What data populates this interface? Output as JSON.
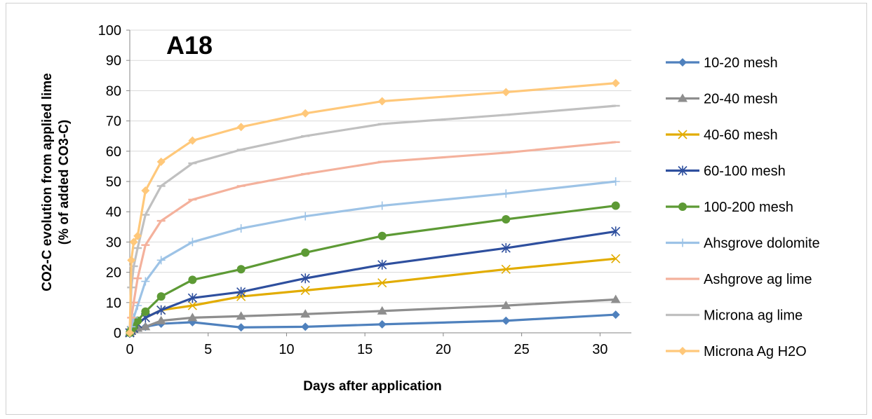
{
  "chart_data": {
    "type": "line",
    "title": "A18",
    "xlabel": "Days after application",
    "ylabel_line1": "CO2-C evolution from applied lime",
    "ylabel_line2": "(% of added CO3-C)",
    "xlim": [
      0,
      32
    ],
    "ylim": [
      0,
      100
    ],
    "xticks": [
      0,
      5,
      10,
      15,
      20,
      25,
      30
    ],
    "yticks": [
      0,
      10,
      20,
      30,
      40,
      50,
      60,
      70,
      80,
      90,
      100
    ],
    "grid": "horizontal",
    "legend_position": "right",
    "x": [
      0,
      0.1,
      0.25,
      0.5,
      1,
      2,
      4,
      7.1,
      11.2,
      16.1,
      24,
      31
    ],
    "series": [
      {
        "name": "10-20 mesh",
        "color": "#4f81bd",
        "marker": "diamond",
        "values": [
          0,
          0.5,
          1.0,
          1.5,
          2.0,
          3.0,
          3.5,
          1.8,
          2.0,
          2.8,
          4.0,
          6.0
        ]
      },
      {
        "name": "20-40 mesh",
        "color": "#8e8e8e",
        "marker": "triangle",
        "values": [
          0,
          0.5,
          1.0,
          1.5,
          2.0,
          4.0,
          5.0,
          5.5,
          6.2,
          7.2,
          9.0,
          11.0
        ]
      },
      {
        "name": "40-60 mesh",
        "color": "#e2ac00",
        "marker": "x",
        "values": [
          0,
          0.8,
          1.5,
          3.0,
          5.0,
          7.5,
          9.0,
          12.0,
          14.0,
          16.5,
          21.0,
          24.5
        ]
      },
      {
        "name": "60-100 mesh",
        "color": "#2e4f9e",
        "marker": "star",
        "values": [
          0,
          0.8,
          1.5,
          3.0,
          5.0,
          7.5,
          11.5,
          13.5,
          18.0,
          22.5,
          28.0,
          33.5
        ]
      },
      {
        "name": "100-200 mesh",
        "color": "#5d9a35",
        "marker": "circle",
        "values": [
          0,
          1.0,
          2.0,
          4.0,
          7.0,
          12.0,
          17.5,
          21.0,
          26.5,
          32.0,
          37.5,
          42.0
        ]
      },
      {
        "name": "Ahsgrove dolomite",
        "color": "#9dc3e6",
        "marker": "plus",
        "values": [
          0,
          2.0,
          5.0,
          9.0,
          17.0,
          24.0,
          30.0,
          34.5,
          38.5,
          42.0,
          46.0,
          50.0
        ]
      },
      {
        "name": "Ashgrove ag lime",
        "color": "#f4b19c",
        "marker": "dash",
        "values": [
          0,
          5.0,
          10.0,
          18.0,
          29.0,
          37.0,
          44.0,
          48.5,
          52.5,
          56.5,
          59.5,
          63.0
        ]
      },
      {
        "name": "Microna ag lime",
        "color": "#c0c0c0",
        "marker": "dash",
        "values": [
          0,
          15.0,
          22.0,
          28.0,
          39.0,
          48.5,
          56.0,
          60.5,
          65.0,
          69.0,
          72.0,
          75.0
        ]
      },
      {
        "name": "Microna Ag H2O",
        "color": "#ffc87a",
        "marker": "diamond",
        "values": [
          0,
          24.0,
          30.0,
          32.0,
          47.0,
          56.5,
          63.5,
          68.0,
          72.5,
          76.5,
          79.5,
          82.5
        ]
      }
    ]
  }
}
